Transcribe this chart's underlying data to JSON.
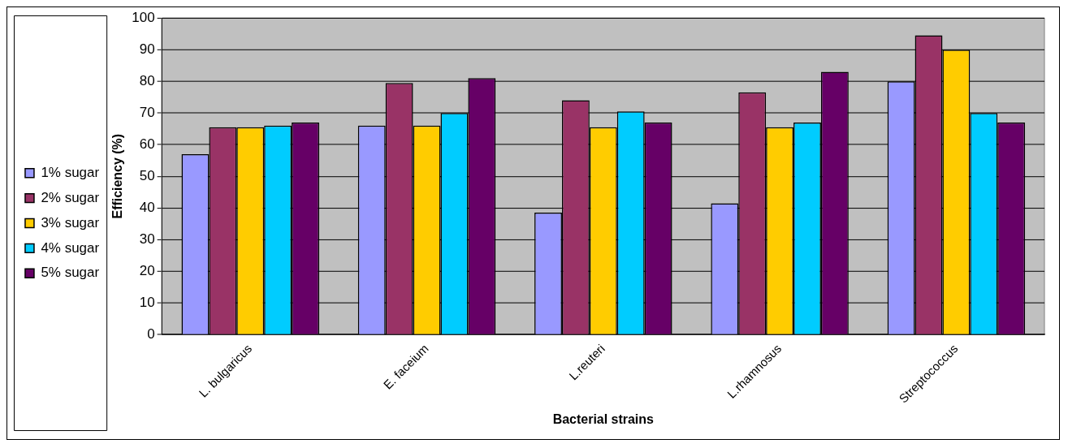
{
  "chart_data": {
    "type": "bar",
    "xlabel": "Bacterial strains",
    "ylabel": "Efficiency (%)",
    "categories": [
      "L. bulgaricus",
      "E. faceium",
      "L.reuteri",
      "L.rhamnosus",
      "Streptococcus"
    ],
    "series": [
      {
        "name": "1% sugar",
        "color": "#9999ff",
        "values": [
          57,
          66,
          38.5,
          41.5,
          80
        ]
      },
      {
        "name": "2% sugar",
        "color": "#993366",
        "values": [
          65.5,
          79.5,
          74,
          76.5,
          94.5
        ]
      },
      {
        "name": "3% sugar",
        "color": "#ffcc00",
        "values": [
          65.5,
          66,
          65.5,
          65.5,
          90
        ]
      },
      {
        "name": "4% sugar",
        "color": "#00ccff",
        "values": [
          66,
          70,
          70.5,
          67,
          70
        ]
      },
      {
        "name": "5% sugar",
        "color": "#660066",
        "values": [
          67,
          81,
          67,
          83,
          67
        ]
      }
    ],
    "ylim": [
      0,
      100
    ],
    "yticks": [
      0,
      10,
      20,
      30,
      40,
      50,
      60,
      70,
      80,
      90,
      100
    ],
    "grid": "y",
    "legend": "left"
  }
}
